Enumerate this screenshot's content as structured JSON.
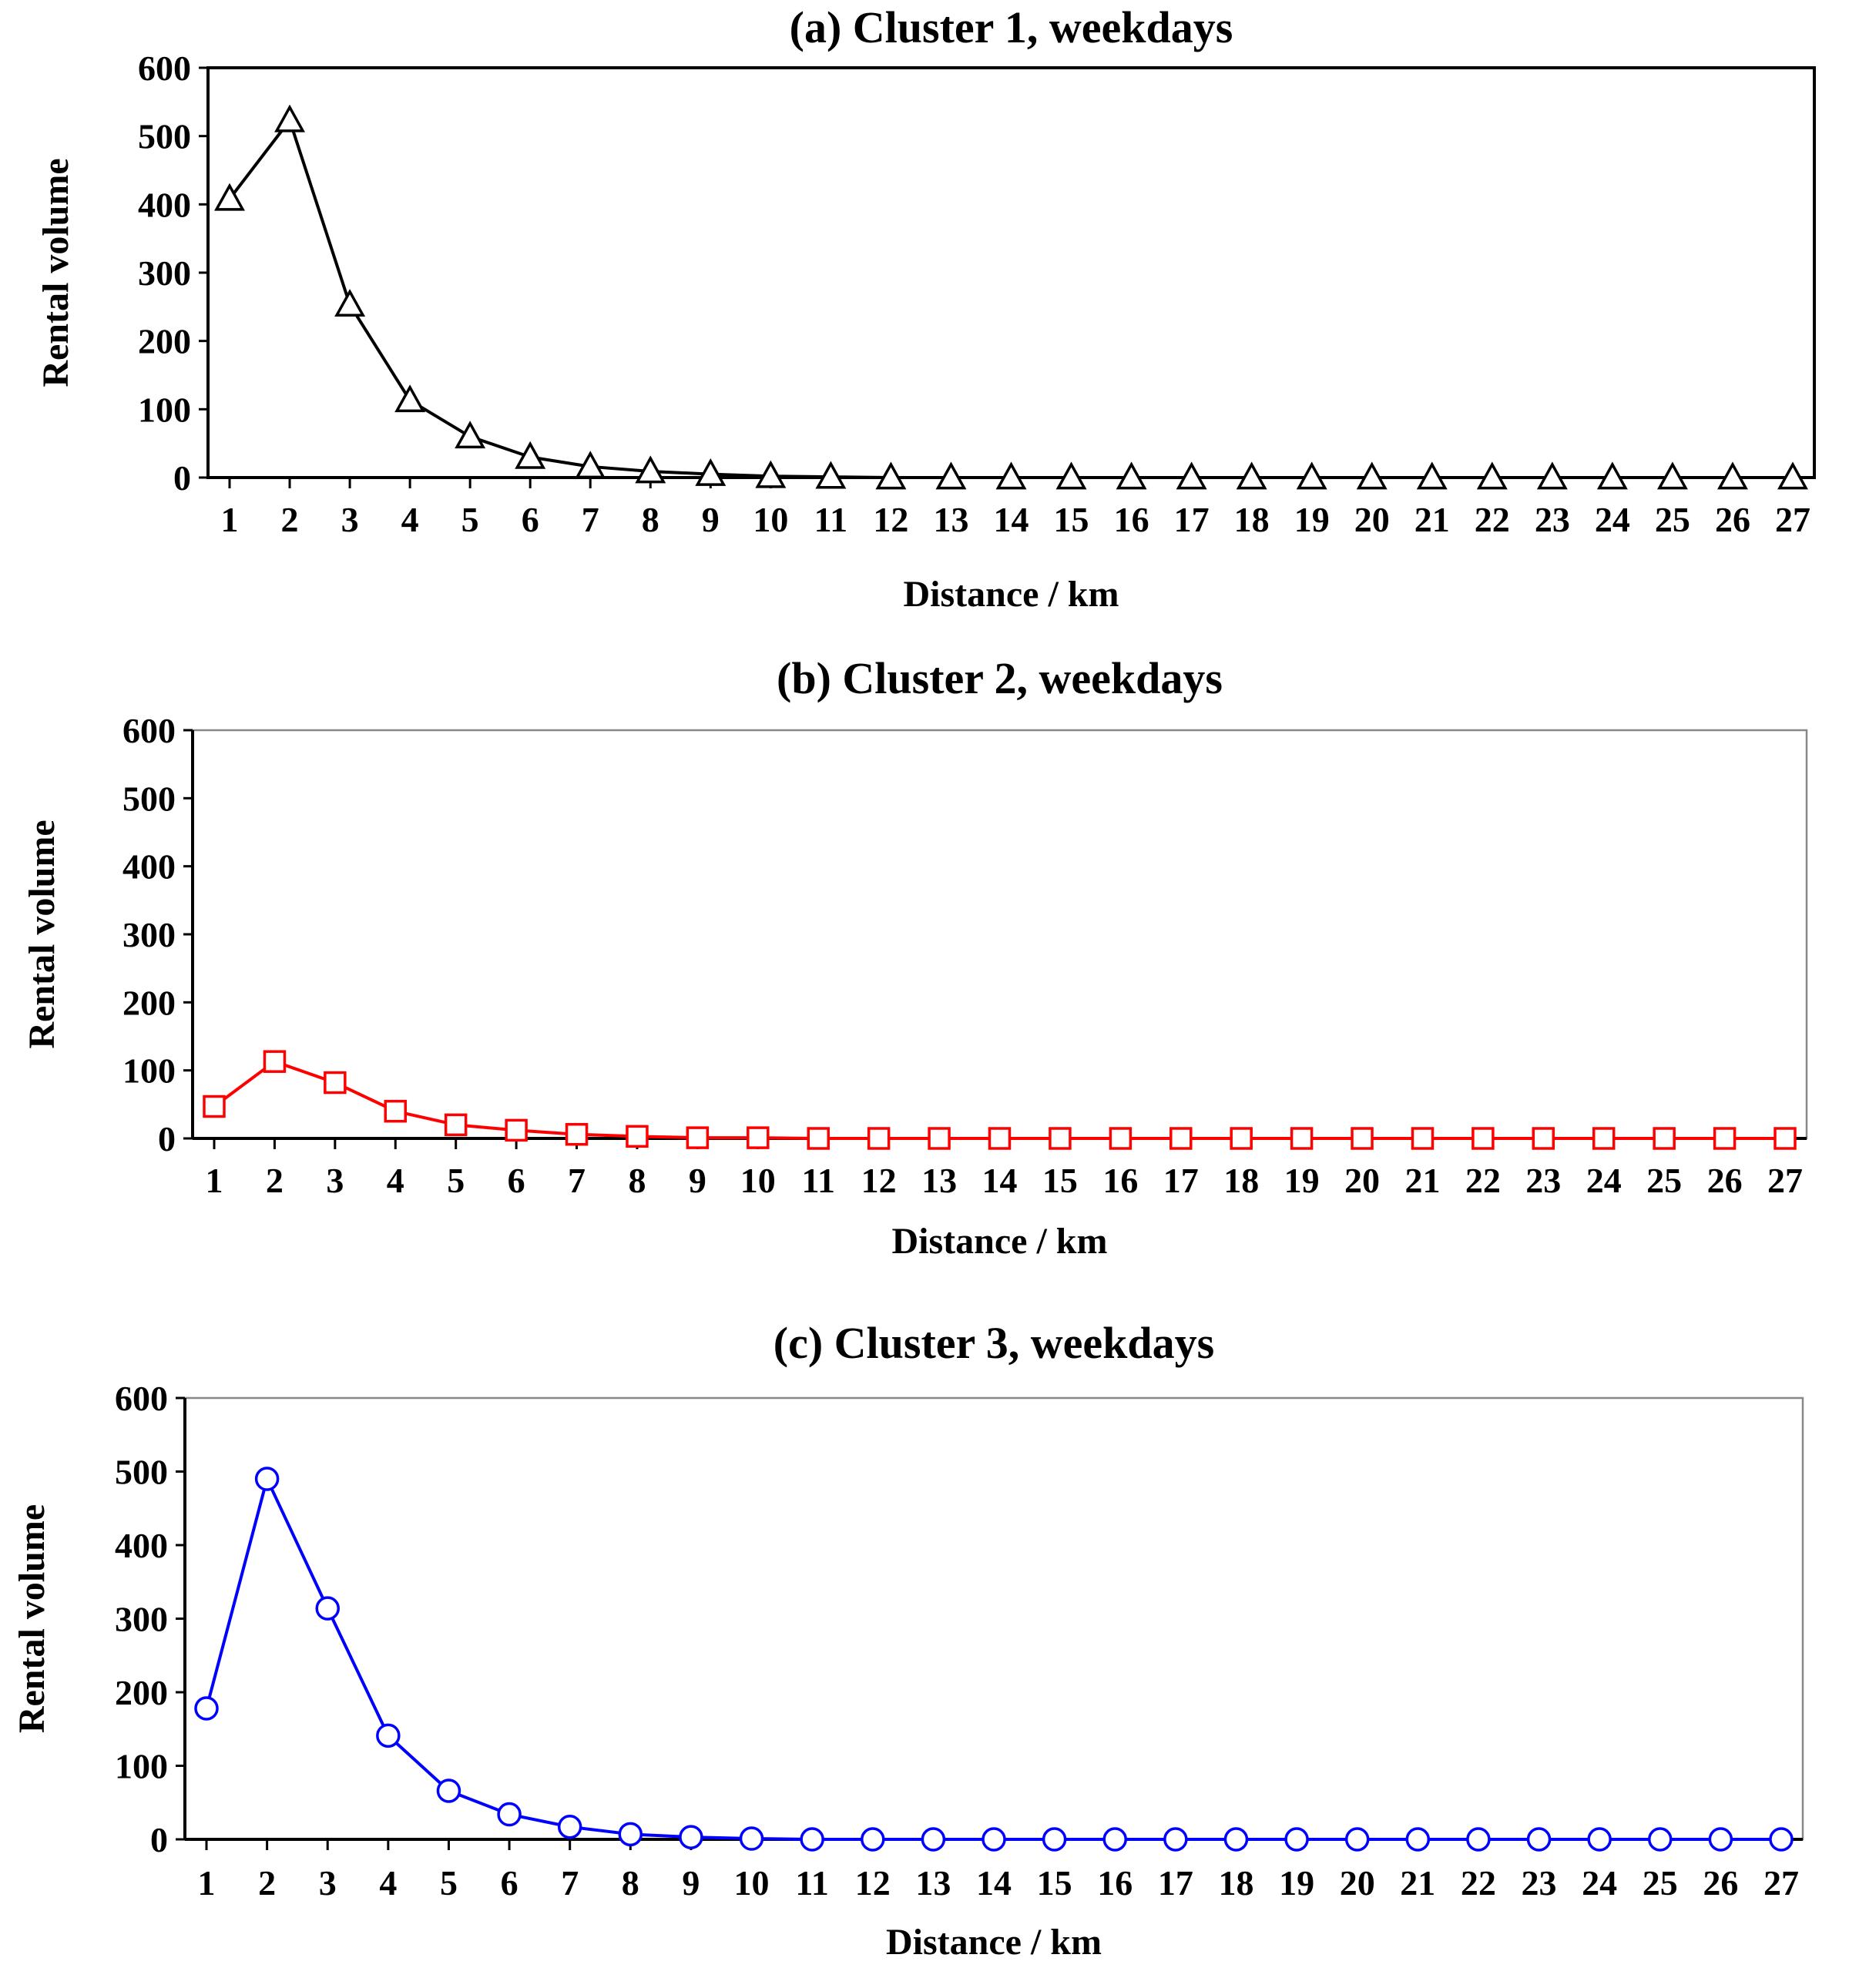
{
  "chart_data": [
    {
      "id": "a",
      "type": "line",
      "title": "(a) Cluster  1, weekdays",
      "xlabel": "Distance / km",
      "ylabel": "Rental volume",
      "ylim": [
        0,
        600
      ],
      "yticks": [
        0,
        100,
        200,
        300,
        400,
        500,
        600
      ],
      "grid": false,
      "marker": "triangle",
      "color": "#000000",
      "categories": [
        "1",
        "2",
        "3",
        "4",
        "5",
        "6",
        "7",
        "8",
        "9",
        "10",
        "11",
        "12",
        "13",
        "14",
        "15",
        "16",
        "17",
        "18",
        "19",
        "20",
        "21",
        "22",
        "23",
        "24",
        "25",
        "26",
        "27"
      ],
      "values": [
        408,
        523,
        253,
        113,
        60,
        30,
        16,
        9,
        5,
        2,
        1,
        0,
        0,
        0,
        0,
        0,
        0,
        0,
        0,
        0,
        0,
        0,
        0,
        0,
        0,
        0,
        0
      ]
    },
    {
      "id": "b",
      "type": "line",
      "title": "(b) Cluster  2, weekdays",
      "xlabel": "Distance / km",
      "ylabel": "Rental volume",
      "ylim": [
        0,
        600
      ],
      "yticks": [
        0,
        100,
        200,
        300,
        400,
        500,
        600
      ],
      "grid": false,
      "marker": "square",
      "color": "#ff0000",
      "categories": [
        "1",
        "2",
        "3",
        "4",
        "5",
        "6",
        "7",
        "8",
        "9",
        "10",
        "11",
        "12",
        "13",
        "14",
        "15",
        "16",
        "17",
        "18",
        "19",
        "20",
        "21",
        "22",
        "23",
        "24",
        "25",
        "26",
        "27"
      ],
      "values": [
        47,
        113,
        82,
        40,
        20,
        12,
        6,
        3,
        1,
        1,
        0,
        0,
        0,
        0,
        0,
        0,
        0,
        0,
        0,
        0,
        0,
        0,
        0,
        0,
        0,
        0,
        0
      ]
    },
    {
      "id": "c",
      "type": "line",
      "title": "(c) Cluster  3, weekdays",
      "xlabel": "Distance / km",
      "ylabel": "Rental volume",
      "ylim": [
        0,
        600
      ],
      "yticks": [
        0,
        100,
        200,
        300,
        400,
        500,
        600
      ],
      "grid": false,
      "marker": "circle",
      "color": "#0000ff",
      "categories": [
        "1",
        "2",
        "3",
        "4",
        "5",
        "6",
        "7",
        "8",
        "9",
        "10",
        "11",
        "12",
        "13",
        "14",
        "15",
        "16",
        "17",
        "18",
        "19",
        "20",
        "21",
        "22",
        "23",
        "24",
        "25",
        "26",
        "27"
      ],
      "values": [
        178,
        490,
        314,
        141,
        66,
        34,
        17,
        7,
        3,
        1,
        0,
        0,
        0,
        0,
        0,
        0,
        0,
        0,
        0,
        0,
        0,
        0,
        0,
        0,
        0,
        0,
        0
      ]
    }
  ]
}
